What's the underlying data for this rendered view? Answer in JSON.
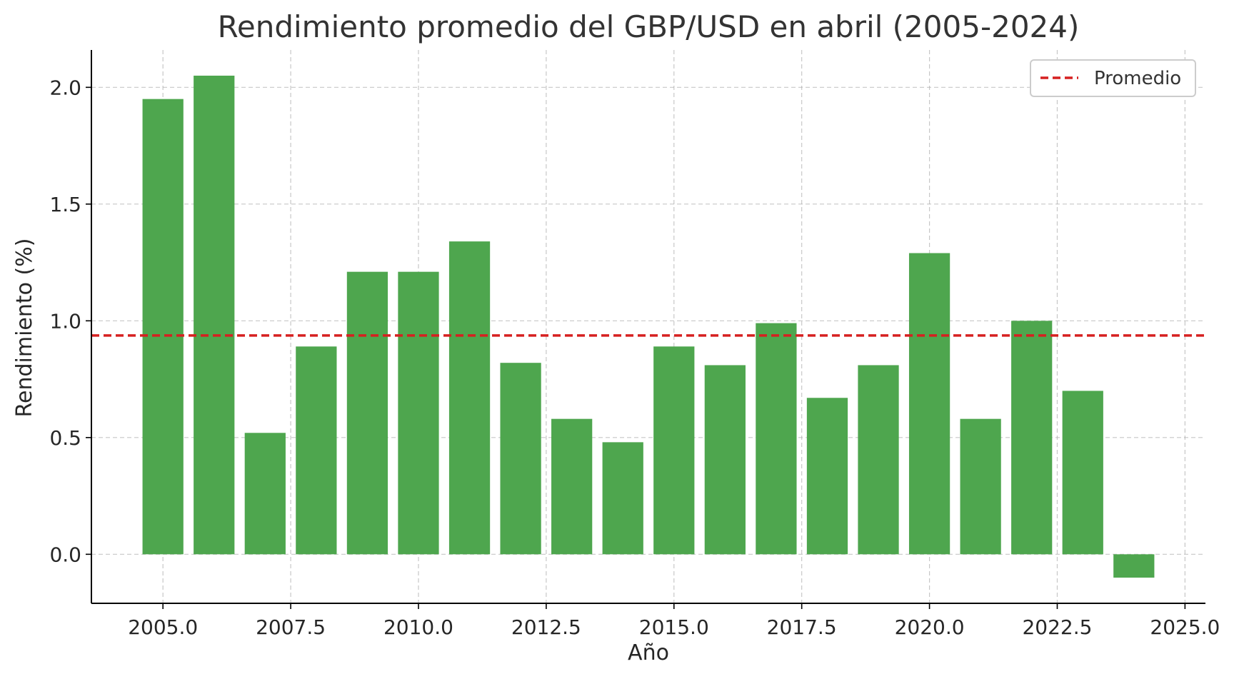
{
  "chart_data": {
    "type": "bar",
    "title": "Rendimiento promedio del GBP/USD en abril (2005-2024)",
    "xlabel": "Año",
    "ylabel": "Rendimiento (%)",
    "x": [
      2005,
      2006,
      2007,
      2008,
      2009,
      2010,
      2011,
      2012,
      2013,
      2014,
      2015,
      2016,
      2017,
      2018,
      2019,
      2020,
      2021,
      2022,
      2023,
      2024
    ],
    "values": [
      1.95,
      2.05,
      0.52,
      0.89,
      1.21,
      1.21,
      1.34,
      0.82,
      0.58,
      0.48,
      0.89,
      0.81,
      0.99,
      0.67,
      0.81,
      1.29,
      0.58,
      1.0,
      0.7,
      -0.1
    ],
    "bar_color": "#4ea64e",
    "average": {
      "value": 0.937,
      "label": "Promedio",
      "color": "#d62020",
      "style": "dashed"
    },
    "xlim": [
      2003.6,
      2025.4
    ],
    "ylim": [
      -0.21,
      2.16
    ],
    "xticks": [
      2005.0,
      2007.5,
      2010.0,
      2012.5,
      2015.0,
      2017.5,
      2020.0,
      2022.5,
      2025.0
    ],
    "xtick_labels": [
      "2005.0",
      "2007.5",
      "2010.0",
      "2012.5",
      "2015.0",
      "2017.5",
      "2020.0",
      "2022.5",
      "2025.0"
    ],
    "yticks": [
      0.0,
      0.5,
      1.0,
      1.5,
      2.0
    ],
    "ytick_labels": [
      "0.0",
      "0.5",
      "1.0",
      "1.5",
      "2.0"
    ],
    "grid": true,
    "legend_position": "top-right"
  }
}
